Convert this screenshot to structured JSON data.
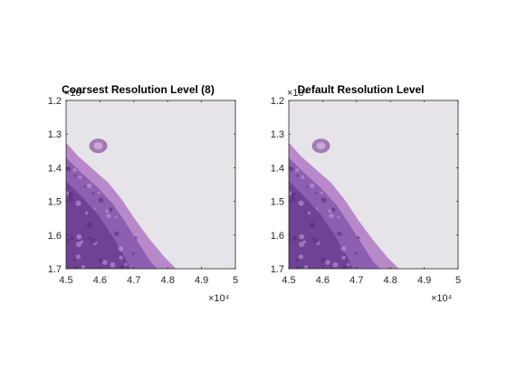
{
  "figure": {
    "background": "#ffffff",
    "axis_color": "#262626"
  },
  "chart_data": [
    {
      "type": "image",
      "title": "Coarsest Resolution Level (8)",
      "xlabel": "",
      "ylabel": "",
      "xlim": [
        45000,
        50000
      ],
      "ylim": [
        12000,
        17000
      ],
      "y_reversed": true,
      "xticks": [
        45000,
        46000,
        47000,
        48000,
        49000,
        50000
      ],
      "xtick_labels": [
        "4.5",
        "4.6",
        "4.7",
        "4.8",
        "4.9",
        "5"
      ],
      "x_exponent_label": "×10⁴",
      "yticks": [
        12000,
        13000,
        14000,
        15000,
        16000,
        17000
      ],
      "ytick_labels": [
        "1.2",
        "1.3",
        "1.4",
        "1.5",
        "1.6",
        "1.7"
      ],
      "y_exponent_label": "×10⁴",
      "image_colors": {
        "background": "#e7e4e9",
        "tissue_dark": "#6b3d92",
        "tissue_mid": "#8c5fb0",
        "tissue_edge": "#b889c9",
        "cell": "#a07bb4"
      }
    },
    {
      "type": "image",
      "title": "Default Resolution Level",
      "xlabel": "",
      "ylabel": "",
      "xlim": [
        45000,
        50000
      ],
      "ylim": [
        12000,
        17000
      ],
      "y_reversed": true,
      "xticks": [
        45000,
        46000,
        47000,
        48000,
        49000,
        50000
      ],
      "xtick_labels": [
        "4.5",
        "4.6",
        "4.7",
        "4.8",
        "4.9",
        "5"
      ],
      "x_exponent_label": "×10⁴",
      "yticks": [
        12000,
        13000,
        14000,
        15000,
        16000,
        17000
      ],
      "ytick_labels": [
        "1.2",
        "1.3",
        "1.4",
        "1.5",
        "1.6",
        "1.7"
      ],
      "y_exponent_label": "×10⁴",
      "image_colors": {
        "background": "#e7e4e9",
        "tissue_dark": "#6b3d92",
        "tissue_mid": "#8c5fb0",
        "tissue_edge": "#b889c9",
        "cell": "#a07bb4"
      }
    }
  ]
}
